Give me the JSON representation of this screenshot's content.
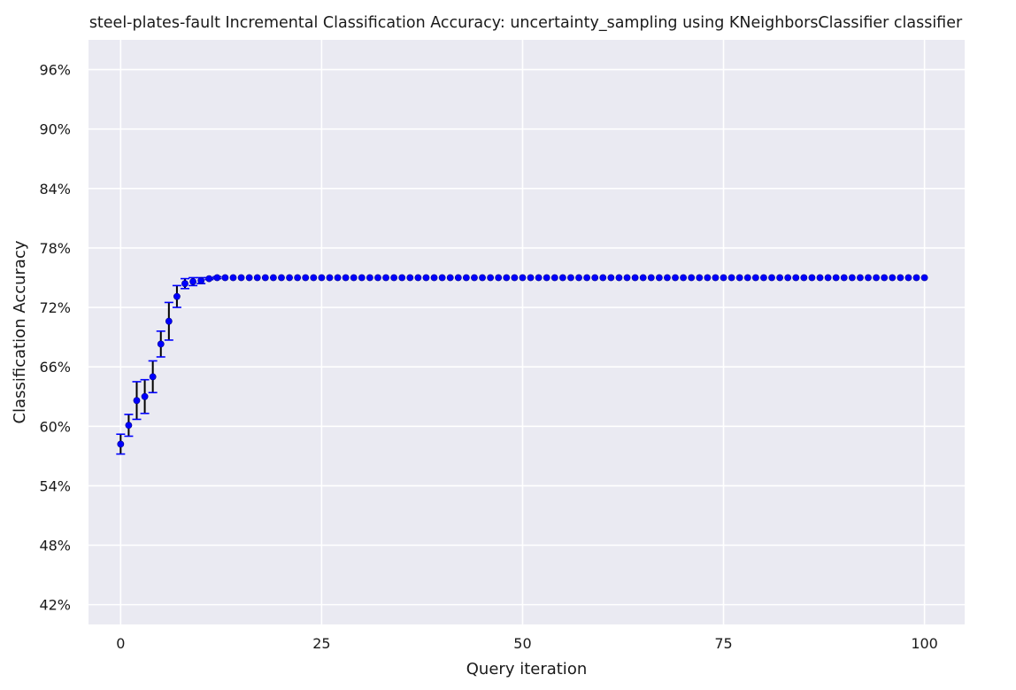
{
  "chart_data": {
    "type": "scatter",
    "title": "steel-plates-fault Incremental Classification Accuracy: uncertainty_sampling using KNeighborsClassifier classifier",
    "xlabel": "Query iteration",
    "ylabel": "Classification Accuracy",
    "xlim": [
      -4,
      105
    ],
    "ylim": [
      0.4,
      0.99
    ],
    "xticks": [
      0,
      25,
      50,
      75,
      100
    ],
    "xtick_labels": [
      "0",
      "25",
      "50",
      "75",
      "100"
    ],
    "yticks": [
      0.42,
      0.48,
      0.54,
      0.6,
      0.66,
      0.72,
      0.78,
      0.84,
      0.9,
      0.96
    ],
    "ytick_labels": [
      "42%",
      "48%",
      "54%",
      "60%",
      "66%",
      "72%",
      "78%",
      "84%",
      "90%",
      "96%"
    ],
    "grid": true,
    "background": "#eaeaf2",
    "grid_color": "#ffffff",
    "point_color": "#0000ff",
    "errorbar_color": "#000000",
    "cap_color": "#0000ff",
    "series": [
      {
        "x": [
          0,
          1,
          2,
          3,
          4,
          5,
          6,
          7,
          8,
          9,
          10,
          11,
          12,
          13,
          14,
          15,
          16,
          17,
          18,
          19,
          20,
          21,
          22,
          23,
          24,
          25,
          26,
          27,
          28,
          29,
          30,
          31,
          32,
          33,
          34,
          35,
          36,
          37,
          38,
          39,
          40,
          41,
          42,
          43,
          44,
          45,
          46,
          47,
          48,
          49,
          50,
          51,
          52,
          53,
          54,
          55,
          56,
          57,
          58,
          59,
          60,
          61,
          62,
          63,
          64,
          65,
          66,
          67,
          68,
          69,
          70,
          71,
          72,
          73,
          74,
          75,
          76,
          77,
          78,
          79,
          80,
          81,
          82,
          83,
          84,
          85,
          86,
          87,
          88,
          89,
          90,
          91,
          92,
          93,
          94,
          95,
          96,
          97,
          98,
          99,
          100
        ],
        "y": [
          0.582,
          0.601,
          0.626,
          0.63,
          0.65,
          0.683,
          0.706,
          0.731,
          0.744,
          0.746,
          0.747,
          0.749,
          0.75,
          0.75,
          0.75,
          0.75,
          0.75,
          0.75,
          0.75,
          0.75,
          0.75,
          0.75,
          0.75,
          0.75,
          0.75,
          0.75,
          0.75,
          0.75,
          0.75,
          0.75,
          0.75,
          0.75,
          0.75,
          0.75,
          0.75,
          0.75,
          0.75,
          0.75,
          0.75,
          0.75,
          0.75,
          0.75,
          0.75,
          0.75,
          0.75,
          0.75,
          0.75,
          0.75,
          0.75,
          0.75,
          0.75,
          0.75,
          0.75,
          0.75,
          0.75,
          0.75,
          0.75,
          0.75,
          0.75,
          0.75,
          0.75,
          0.75,
          0.75,
          0.75,
          0.75,
          0.75,
          0.75,
          0.75,
          0.75,
          0.75,
          0.75,
          0.75,
          0.75,
          0.75,
          0.75,
          0.75,
          0.75,
          0.75,
          0.75,
          0.75,
          0.75,
          0.75,
          0.75,
          0.75,
          0.75,
          0.75,
          0.75,
          0.75,
          0.75,
          0.75,
          0.75,
          0.75,
          0.75,
          0.75,
          0.75,
          0.75,
          0.75,
          0.75,
          0.75,
          0.75,
          0.75
        ],
        "err": [
          0.01,
          0.011,
          0.019,
          0.017,
          0.016,
          0.013,
          0.019,
          0.011,
          0.005,
          0.004,
          0.003,
          0.001,
          0.001,
          0,
          0,
          0,
          0,
          0,
          0,
          0,
          0,
          0,
          0,
          0,
          0,
          0,
          0,
          0,
          0,
          0,
          0,
          0,
          0,
          0,
          0,
          0,
          0,
          0,
          0,
          0,
          0,
          0,
          0,
          0,
          0,
          0,
          0,
          0,
          0,
          0,
          0,
          0,
          0,
          0,
          0,
          0,
          0,
          0,
          0,
          0,
          0,
          0,
          0,
          0,
          0,
          0,
          0,
          0,
          0,
          0,
          0,
          0,
          0,
          0,
          0,
          0,
          0,
          0,
          0,
          0,
          0,
          0,
          0,
          0,
          0,
          0,
          0,
          0,
          0,
          0,
          0,
          0,
          0,
          0,
          0,
          0,
          0,
          0,
          0,
          0,
          0
        ]
      }
    ]
  }
}
